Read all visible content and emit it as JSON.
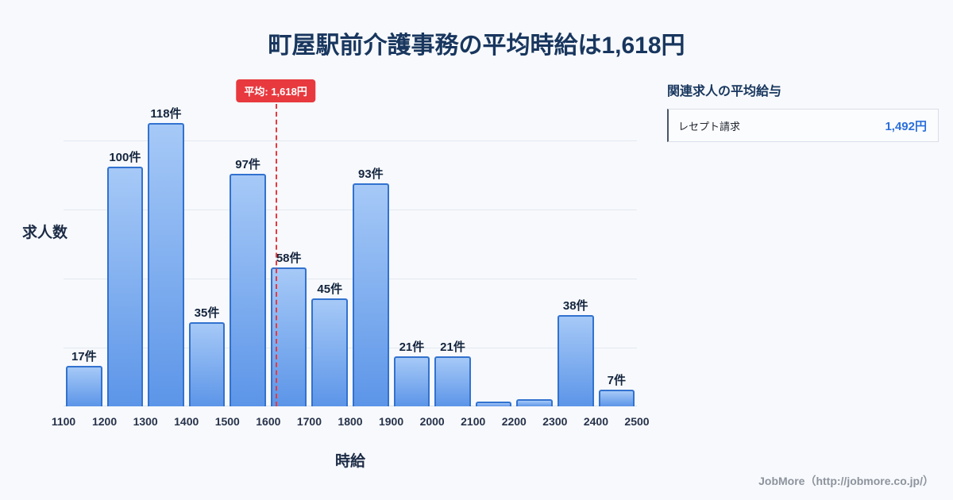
{
  "page": {
    "title": "町屋駅前介護事務の平均時給は1,618円",
    "footer": "JobMore（http://jobmore.co.jp/）"
  },
  "chart_data": {
    "type": "bar",
    "title": "町屋駅前介護事務の平均時給は1,618円",
    "xlabel": "時給",
    "ylabel": "求人数",
    "unit": "件",
    "grid": true,
    "xlim": [
      1100,
      2500
    ],
    "ylim": [
      0,
      138
    ],
    "x_ticks": [
      "1100",
      "1200",
      "1300",
      "1400",
      "1500",
      "1600",
      "1700",
      "1800",
      "1900",
      "2000",
      "2100",
      "2200",
      "2300",
      "2400",
      "2500"
    ],
    "bins": [
      {
        "from": 1100,
        "to": 1200,
        "value": 17,
        "label": "17件"
      },
      {
        "from": 1200,
        "to": 1300,
        "value": 100,
        "label": "100件"
      },
      {
        "from": 1300,
        "to": 1400,
        "value": 118,
        "label": "118件"
      },
      {
        "from": 1400,
        "to": 1500,
        "value": 35,
        "label": "35件"
      },
      {
        "from": 1500,
        "to": 1600,
        "value": 97,
        "label": "97件"
      },
      {
        "from": 1600,
        "to": 1700,
        "value": 58,
        "label": "58件"
      },
      {
        "from": 1700,
        "to": 1800,
        "value": 45,
        "label": "45件"
      },
      {
        "from": 1800,
        "to": 1900,
        "value": 93,
        "label": "93件"
      },
      {
        "from": 1900,
        "to": 2000,
        "value": 21,
        "label": "21件"
      },
      {
        "from": 2100,
        "to": 2200,
        "value": 2,
        "label": ""
      },
      {
        "from": 2200,
        "to": 2300,
        "value": 3,
        "label": ""
      },
      {
        "from": 2300,
        "to": 2400,
        "value": 38,
        "label": "38件"
      },
      {
        "from": 2400,
        "to": 2500,
        "value": 7,
        "label": "7件"
      }
    ],
    "average": {
      "value": 1618,
      "label": "平均: 1,618円"
    },
    "colors": {
      "bar_top": "#a6c9f7",
      "bar_bottom": "#5c95e8",
      "bar_border": "#3272cf",
      "average_line": "#e8393f",
      "title": "#18365e",
      "value_blue": "#2a6fdb"
    }
  },
  "side_panel": {
    "heading": "関連求人の平均給与",
    "rows": [
      {
        "label": "レセプト請求",
        "value": "1,492円"
      }
    ]
  }
}
